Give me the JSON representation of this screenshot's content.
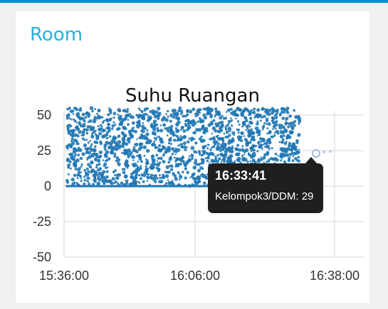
{
  "card": {
    "title": "Room"
  },
  "chart_data": {
    "type": "scatter",
    "title": "Suhu Ruangan",
    "xlabel": "",
    "ylabel": "",
    "ylim": [
      -50,
      50
    ],
    "y_ticks": [
      "50",
      "25",
      "0",
      "-25",
      "-50"
    ],
    "x_ticks": [
      "15:36:00",
      "16:06:00",
      "16:38:00"
    ],
    "grid": true,
    "series": [
      {
        "name": "Kelompok3/DDM",
        "color": "#1f77b4",
        "x_range": [
          "15:36:00",
          "16:30:00"
        ],
        "y_range": [
          0,
          55
        ],
        "note_density": "dense"
      }
    ]
  },
  "tooltip": {
    "time": "16:33:41",
    "value": "Kelompok3/DDM: 29"
  },
  "colors": {
    "accent": "#29aee3",
    "topbar": "#0094ce",
    "points": "#1f77b4"
  }
}
